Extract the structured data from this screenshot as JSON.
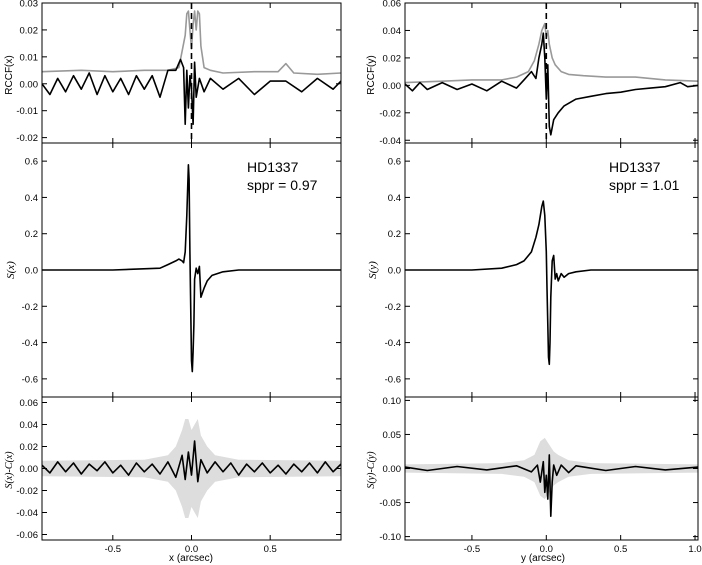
{
  "chart_data": [
    {
      "panel": "left-top",
      "type": "line",
      "ylabel": "RCCF(x)",
      "xlim": [
        -0.95,
        0.95
      ],
      "ylim": [
        -0.022,
        0.03
      ],
      "yticks": [
        -0.02,
        -0.01,
        0.0,
        0.01,
        0.02,
        0.03
      ],
      "ytick_labels": [
        "-0.02",
        "-0.01",
        "0.00",
        "0.01",
        "0.02",
        "0.03"
      ],
      "vline_x": 0.0,
      "series": [
        {
          "color": "#999999",
          "x": [
            -0.95,
            -0.7,
            -0.5,
            -0.3,
            -0.15,
            -0.08,
            -0.04,
            -0.03,
            -0.02,
            -0.01,
            0.0,
            0.01,
            0.02,
            0.03,
            0.04,
            0.05,
            0.06,
            0.08,
            0.12,
            0.2,
            0.4,
            0.55,
            0.6,
            0.65,
            0.8,
            0.95
          ],
          "y": [
            0.0045,
            0.005,
            0.0045,
            0.005,
            0.005,
            0.006,
            0.018,
            0.026,
            0.027,
            0.02,
            0.013,
            0.022,
            0.027,
            0.02,
            0.027,
            0.026,
            0.014,
            0.006,
            0.005,
            0.004,
            0.0045,
            0.0045,
            0.0075,
            0.004,
            0.0035,
            0.004
          ]
        },
        {
          "color": "#000000",
          "x": [
            -0.95,
            -0.9,
            -0.85,
            -0.8,
            -0.75,
            -0.7,
            -0.65,
            -0.6,
            -0.55,
            -0.5,
            -0.45,
            -0.4,
            -0.35,
            -0.3,
            -0.25,
            -0.2,
            -0.15,
            -0.1,
            -0.07,
            -0.05,
            -0.04,
            -0.03,
            -0.02,
            -0.01,
            0.0,
            0.01,
            0.02,
            0.03,
            0.05,
            0.08,
            0.12,
            0.2,
            0.3,
            0.4,
            0.5,
            0.6,
            0.7,
            0.8,
            0.9,
            0.95
          ],
          "y": [
            0.0,
            -0.004,
            0.002,
            -0.003,
            0.003,
            -0.002,
            0.004,
            -0.004,
            0.003,
            -0.003,
            0.002,
            -0.004,
            0.003,
            -0.002,
            0.003,
            -0.005,
            0.005,
            0.005,
            0.009,
            0.006,
            -0.015,
            0.005,
            -0.009,
            0.003,
            -0.002,
            -0.015,
            0.008,
            -0.005,
            0.002,
            -0.003,
            0.002,
            -0.002,
            0.002,
            -0.004,
            0.001,
            0.001,
            -0.003,
            0.002,
            -0.002,
            0.001
          ]
        }
      ]
    },
    {
      "panel": "left-mid",
      "type": "line",
      "ylabel": "S(x)",
      "xlim": [
        -0.95,
        0.95
      ],
      "ylim": [
        -0.7,
        0.7
      ],
      "yticks": [
        -0.6,
        -0.4,
        -0.2,
        0.0,
        0.2,
        0.4,
        0.6
      ],
      "ytick_labels": [
        "-0.6",
        "-0.4",
        "-0.2",
        "0.0",
        "0.2",
        "0.4",
        "0.6"
      ],
      "annotation": [
        "HD1337",
        "sppr = 0.97"
      ],
      "series": [
        {
          "color": "#000000",
          "x": [
            -0.95,
            -0.5,
            -0.2,
            -0.15,
            -0.1,
            -0.08,
            -0.06,
            -0.05,
            -0.04,
            -0.03,
            -0.02,
            -0.015,
            -0.01,
            -0.005,
            0.0,
            0.005,
            0.01,
            0.015,
            0.02,
            0.03,
            0.04,
            0.05,
            0.06,
            0.08,
            0.1,
            0.13,
            0.2,
            0.3,
            0.5,
            0.95
          ],
          "y": [
            0.0,
            0.0,
            0.01,
            0.03,
            0.05,
            0.06,
            0.05,
            0.04,
            0.1,
            0.3,
            0.58,
            0.5,
            0.1,
            -0.2,
            -0.5,
            -0.56,
            -0.45,
            -0.3,
            -0.05,
            0.01,
            -0.02,
            0.02,
            -0.15,
            -0.1,
            -0.06,
            -0.03,
            -0.01,
            0.0,
            0.0,
            0.0
          ]
        }
      ]
    },
    {
      "panel": "left-bottom",
      "type": "line",
      "ylabel": "S(x)-C(x)",
      "xlabel": "x (arcsec)",
      "xlim": [
        -0.95,
        0.95
      ],
      "ylim": [
        -0.065,
        0.065
      ],
      "yticks": [
        -0.06,
        -0.04,
        -0.02,
        0.0,
        0.02,
        0.04,
        0.06
      ],
      "ytick_labels": [
        "-0.06",
        "-0.04",
        "-0.02",
        "0.00",
        "0.02",
        "0.04",
        "0.06"
      ],
      "xticks": [
        -0.5,
        0.0,
        0.5
      ],
      "xtick_labels": [
        "-0.5",
        "0.0",
        "0.5"
      ],
      "band": {
        "color": "#dddddd",
        "x": [
          -0.95,
          -0.3,
          -0.15,
          -0.1,
          -0.06,
          -0.04,
          -0.02,
          0.0,
          0.02,
          0.04,
          0.06,
          0.1,
          0.15,
          0.3,
          0.95
        ],
        "upper": [
          0.007,
          0.008,
          0.012,
          0.02,
          0.035,
          0.045,
          0.045,
          0.035,
          0.04,
          0.045,
          0.03,
          0.02,
          0.012,
          0.008,
          0.007
        ],
        "lower": [
          -0.007,
          -0.008,
          -0.012,
          -0.02,
          -0.035,
          -0.045,
          -0.045,
          -0.035,
          -0.04,
          -0.045,
          -0.03,
          -0.02,
          -0.012,
          -0.008,
          -0.007
        ]
      },
      "series": [
        {
          "color": "#000000",
          "x": [
            -0.95,
            -0.9,
            -0.85,
            -0.8,
            -0.75,
            -0.7,
            -0.65,
            -0.6,
            -0.55,
            -0.5,
            -0.45,
            -0.4,
            -0.35,
            -0.3,
            -0.25,
            -0.2,
            -0.15,
            -0.1,
            -0.06,
            -0.04,
            -0.02,
            0.0,
            0.02,
            0.04,
            0.06,
            0.1,
            0.15,
            0.2,
            0.25,
            0.3,
            0.35,
            0.4,
            0.45,
            0.5,
            0.55,
            0.6,
            0.65,
            0.7,
            0.75,
            0.8,
            0.85,
            0.9,
            0.95
          ],
          "y": [
            0.003,
            -0.004,
            0.006,
            -0.003,
            0.005,
            -0.005,
            0.004,
            -0.002,
            0.006,
            -0.004,
            0.003,
            -0.006,
            0.005,
            -0.003,
            0.004,
            -0.005,
            0.006,
            -0.008,
            0.012,
            -0.01,
            0.015,
            -0.006,
            0.025,
            -0.012,
            0.008,
            -0.004,
            0.006,
            -0.003,
            0.005,
            -0.006,
            0.004,
            -0.003,
            0.005,
            -0.004,
            0.003,
            -0.005,
            0.004,
            -0.003,
            0.005,
            -0.004,
            0.006,
            -0.003,
            0.004
          ]
        }
      ]
    },
    {
      "panel": "right-top",
      "type": "line",
      "ylabel": "RCCF(y)",
      "xlim": [
        -0.95,
        1.02
      ],
      "ylim": [
        -0.042,
        0.06
      ],
      "yticks": [
        -0.04,
        -0.02,
        0.0,
        0.02,
        0.04,
        0.06
      ],
      "ytick_labels": [
        "-0.04",
        "-0.02",
        "0.00",
        "0.02",
        "0.04",
        "0.06"
      ],
      "vline_x": 0.0,
      "series": [
        {
          "color": "#999999",
          "x": [
            -0.95,
            -0.7,
            -0.5,
            -0.3,
            -0.2,
            -0.12,
            -0.08,
            -0.05,
            -0.03,
            -0.01,
            0.0,
            0.01,
            0.02,
            0.04,
            0.06,
            0.1,
            0.15,
            0.25,
            0.4,
            0.6,
            0.8,
            1.02
          ],
          "y": [
            0.002,
            0.003,
            0.004,
            0.004,
            0.006,
            0.01,
            0.018,
            0.03,
            0.04,
            0.045,
            0.035,
            0.04,
            0.03,
            0.02,
            0.015,
            0.01,
            0.008,
            0.007,
            0.006,
            0.006,
            0.004,
            0.003
          ]
        },
        {
          "color": "#000000",
          "x": [
            -0.95,
            -0.9,
            -0.85,
            -0.8,
            -0.7,
            -0.6,
            -0.5,
            -0.4,
            -0.3,
            -0.2,
            -0.15,
            -0.1,
            -0.07,
            -0.05,
            -0.03,
            -0.02,
            -0.01,
            0.0,
            0.01,
            0.02,
            0.03,
            0.05,
            0.08,
            0.12,
            0.2,
            0.3,
            0.4,
            0.5,
            0.6,
            0.7,
            0.8,
            0.9,
            0.95,
            1.02
          ],
          "y": [
            0.001,
            -0.004,
            0.002,
            -0.003,
            0.002,
            -0.003,
            0.001,
            -0.004,
            0.003,
            -0.002,
            0.004,
            0.01,
            0.005,
            0.02,
            0.03,
            0.038,
            0.02,
            -0.01,
            0.015,
            -0.03,
            -0.036,
            -0.025,
            -0.02,
            -0.015,
            -0.01,
            -0.008,
            -0.006,
            -0.005,
            -0.003,
            -0.002,
            -0.001,
            0.002,
            -0.001,
            0.0
          ]
        }
      ]
    },
    {
      "panel": "right-mid",
      "type": "line",
      "ylabel": "S(y)",
      "xlim": [
        -0.95,
        1.02
      ],
      "ylim": [
        -0.7,
        0.7
      ],
      "yticks": [
        -0.6,
        -0.4,
        -0.2,
        0.0,
        0.2,
        0.4,
        0.6
      ],
      "ytick_labels": [
        "-0.6",
        "-0.4",
        "-0.2",
        "0.0",
        "0.2",
        "0.4",
        "0.6"
      ],
      "annotation": [
        "HD1337",
        "sppr = 1.01"
      ],
      "series": [
        {
          "color": "#000000",
          "x": [
            -0.95,
            -0.5,
            -0.3,
            -0.2,
            -0.15,
            -0.1,
            -0.07,
            -0.05,
            -0.03,
            -0.02,
            -0.01,
            0.0,
            0.005,
            0.01,
            0.015,
            0.02,
            0.025,
            0.03,
            0.04,
            0.05,
            0.06,
            0.07,
            0.08,
            0.1,
            0.12,
            0.15,
            0.2,
            0.3,
            0.5,
            1.02
          ],
          "y": [
            0.0,
            0.0,
            0.01,
            0.03,
            0.05,
            0.1,
            0.18,
            0.25,
            0.35,
            0.38,
            0.3,
            0.1,
            -0.1,
            -0.3,
            -0.48,
            -0.52,
            -0.4,
            -0.15,
            0.05,
            0.08,
            -0.05,
            -0.02,
            -0.06,
            -0.02,
            -0.04,
            -0.02,
            -0.01,
            0.0,
            0.0,
            0.0
          ]
        }
      ]
    },
    {
      "panel": "right-bottom",
      "type": "line",
      "ylabel": "S(y)-C(y)",
      "xlabel": "y (arcsec)",
      "xlim": [
        -0.95,
        1.02
      ],
      "ylim": [
        -0.105,
        0.105
      ],
      "yticks": [
        -0.1,
        -0.05,
        0.0,
        0.05,
        0.1
      ],
      "ytick_labels": [
        "-0.10",
        "-0.05",
        "0.00",
        "0.05",
        "0.10"
      ],
      "xticks": [
        -0.5,
        0.0,
        0.5,
        1.0
      ],
      "xtick_labels": [
        "-0.5",
        "0.0",
        "0.5",
        "1.0"
      ],
      "band": {
        "color": "#dddddd",
        "x": [
          -0.95,
          -0.3,
          -0.15,
          -0.08,
          -0.04,
          -0.01,
          0.02,
          0.05,
          0.08,
          0.15,
          0.3,
          1.02
        ],
        "upper": [
          0.006,
          0.008,
          0.012,
          0.02,
          0.04,
          0.045,
          0.035,
          0.025,
          0.02,
          0.012,
          0.008,
          0.006
        ],
        "lower": [
          -0.006,
          -0.008,
          -0.012,
          -0.02,
          -0.04,
          -0.045,
          -0.035,
          -0.025,
          -0.02,
          -0.012,
          -0.008,
          -0.006
        ]
      },
      "series": [
        {
          "color": "#000000",
          "x": [
            -0.95,
            -0.8,
            -0.6,
            -0.4,
            -0.2,
            -0.1,
            -0.06,
            -0.04,
            -0.02,
            -0.01,
            0.0,
            0.01,
            0.02,
            0.03,
            0.04,
            0.05,
            0.07,
            0.1,
            0.15,
            0.2,
            0.4,
            0.6,
            0.8,
            1.02
          ],
          "y": [
            0.002,
            -0.003,
            0.003,
            -0.002,
            0.004,
            -0.005,
            0.005,
            -0.02,
            0.01,
            -0.035,
            -0.01,
            -0.045,
            0.02,
            -0.07,
            -0.02,
            0.005,
            -0.01,
            0.005,
            -0.006,
            0.004,
            -0.003,
            0.003,
            -0.002,
            0.002
          ]
        }
      ]
    }
  ],
  "panels_text": {
    "left": {
      "ylabel_top": "RCCF(x)",
      "ylabel_mid": "S(x)",
      "ylabel_bot": "S(x)-C(x)",
      "xlabel": "x (arcsec)",
      "star": "HD1337",
      "sppr": "sppr = 0.97"
    },
    "right": {
      "ylabel_top": "RCCF(y)",
      "ylabel_mid": "S(y)",
      "ylabel_bot": "S(y)-C(y)",
      "xlabel": "y (arcsec)",
      "star": "HD1337",
      "sppr": "sppr = 1.01"
    }
  }
}
